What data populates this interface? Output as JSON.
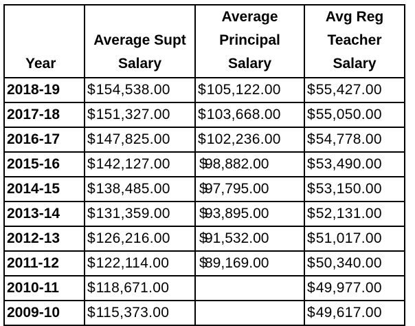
{
  "headers": {
    "year": "Year",
    "supt_line1": "Average Supt",
    "supt_line2": "Salary",
    "principal_line1": "Average",
    "principal_line2": "Principal",
    "principal_line3": "Salary",
    "teacher_line1": "Avg Reg",
    "teacher_line2": "Teacher",
    "teacher_line3": "Salary"
  },
  "currency_symbol": "$",
  "rows": [
    {
      "year": "2018-19",
      "supt": "154,538.00",
      "principal": "105,122.00",
      "teacher": "55,427.00"
    },
    {
      "year": "2017-18",
      "supt": "151,327.00",
      "principal": "103,668.00",
      "teacher": "55,050.00"
    },
    {
      "year": "2016-17",
      "supt": "147,825.00",
      "principal": "102,236.00",
      "teacher": "54,778.00"
    },
    {
      "year": "2015-16",
      "supt": "142,127.00",
      "principal": "98,882.00",
      "teacher": "53,490.00"
    },
    {
      "year": "2014-15",
      "supt": "138,485.00",
      "principal": "97,795.00",
      "teacher": "53,150.00"
    },
    {
      "year": "2013-14",
      "supt": "131,359.00",
      "principal": "93,895.00",
      "teacher": "52,131.00"
    },
    {
      "year": "2012-13",
      "supt": "126,216.00",
      "principal": "91,532.00",
      "teacher": "51,017.00"
    },
    {
      "year": "2011-12",
      "supt": "122,114.00",
      "principal": "89,169.00",
      "teacher": "50,340.00"
    },
    {
      "year": "2010-11",
      "supt": "118,671.00",
      "principal": "",
      "teacher": "49,977.00"
    },
    {
      "year": "2009-10",
      "supt": "115,373.00",
      "principal": "",
      "teacher": "49,617.00"
    }
  ]
}
